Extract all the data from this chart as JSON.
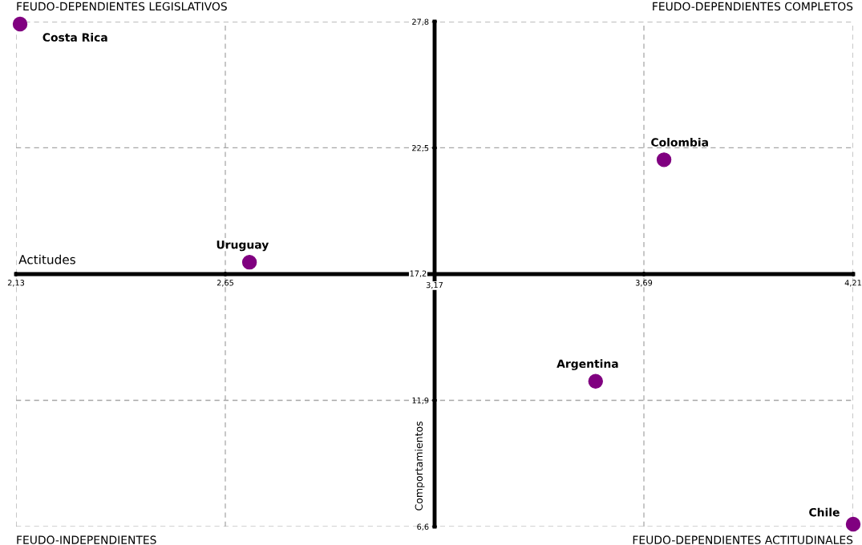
{
  "chart_data": {
    "type": "scatter",
    "xlabel": "Actitudes",
    "ylabel": "Comportamientos",
    "x": [
      2.14,
      3.74,
      2.71,
      3.57,
      4.21
    ],
    "values": [
      27.7,
      22.0,
      17.7,
      12.7,
      6.7
    ],
    "color": "#800080",
    "marker": "circle",
    "xlim": [
      2.13,
      4.21
    ],
    "ylim": [
      6.6,
      27.8
    ],
    "xticks": [
      {
        "value": 2.13,
        "label": "2,13"
      },
      {
        "value": 2.65,
        "label": "2,65"
      },
      {
        "value": 3.17,
        "label": "3,17"
      },
      {
        "value": 3.69,
        "label": "3,69"
      },
      {
        "value": 4.21,
        "label": "4,21"
      }
    ],
    "yticks": [
      {
        "value": 6.6,
        "label": "6,6"
      },
      {
        "value": 11.9,
        "label": "11,9"
      },
      {
        "value": 17.2,
        "label": "17,2"
      },
      {
        "value": 22.5,
        "label": "22,5"
      },
      {
        "value": 27.8,
        "label": "27,8"
      }
    ],
    "grid": true,
    "annotations": [
      "FEUDO-DEPENDIENTES LEGISLATIVOS",
      "FEUDO-DEPENDIENTES COMPLETOS",
      "FEUDO-INDEPENDIENTES",
      "FEUDO-DEPENDIENTES ACTITUDINALES",
      {
        "text": "Costa Rica",
        "x": 2.14,
        "y": 27.7
      },
      {
        "text": "Colombia",
        "x": 3.74,
        "y": 22.0
      },
      {
        "text": "Uruguay",
        "x": 2.71,
        "y": 17.7
      },
      {
        "text": "Argentina",
        "x": 3.57,
        "y": 12.7
      },
      {
        "text": "Chile",
        "x": 4.21,
        "y": 6.7
      }
    ]
  }
}
